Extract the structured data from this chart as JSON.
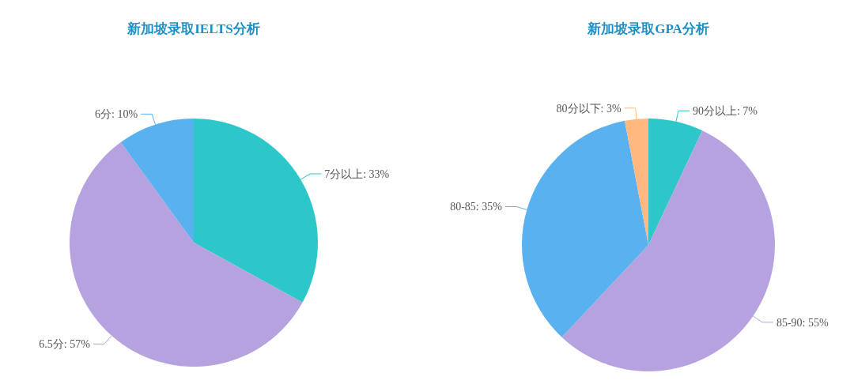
{
  "chart_data": [
    {
      "type": "pie",
      "title": "新加坡录取IELTS分析",
      "categories": [
        "7分以上",
        "6.5分",
        "6分"
      ],
      "values": [
        33,
        57,
        10
      ],
      "value_labels": [
        "33%",
        "57%",
        "10%"
      ],
      "colors": [
        "#2ec7c9",
        "#b6a2de",
        "#5ab1ef"
      ]
    },
    {
      "type": "pie",
      "title": "新加坡录取GPA分析",
      "categories": [
        "90分以上",
        "85-90",
        "80-85",
        "80分以下"
      ],
      "values": [
        7,
        55,
        35,
        3
      ],
      "value_labels": [
        "7%",
        "55%",
        "35%",
        "3%"
      ],
      "colors": [
        "#2ec7c9",
        "#b6a2de",
        "#5ab1ef",
        "#ffb980"
      ]
    }
  ]
}
